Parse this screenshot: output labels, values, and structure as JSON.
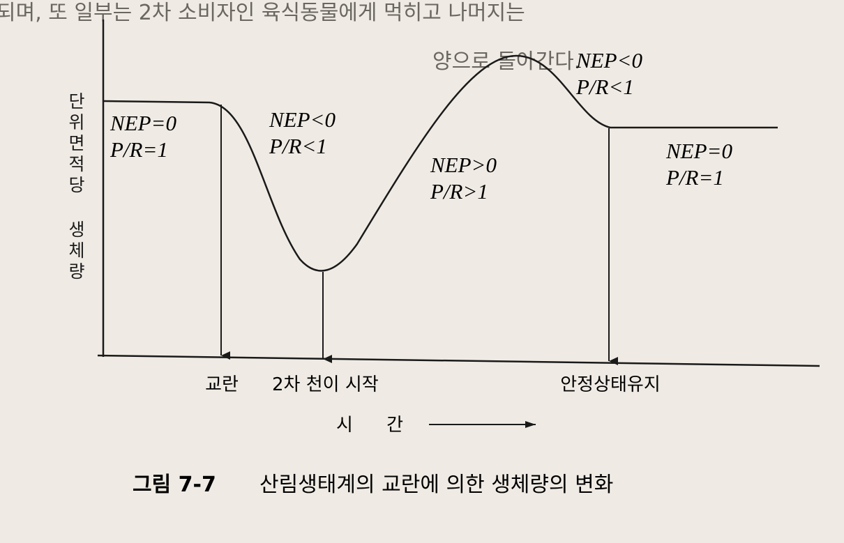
{
  "header": {
    "lines": [
      "되며, 또 일부는 2차 소비자인 육식동물에게 먹히고 나머지는",
      "양으로 돌아간다."
    ]
  },
  "y_axis_label": "단위면적당 생체량",
  "phases": [
    {
      "nep": "NEP=0",
      "pr": "P/R=1"
    },
    {
      "nep": "NEP<0",
      "pr": "P/R<1"
    },
    {
      "nep": "NEP>0",
      "pr": "P/R>1"
    },
    {
      "nep": "NEP<0",
      "pr": "P/R<1"
    },
    {
      "nep": "NEP=0",
      "pr": "P/R=1"
    }
  ],
  "events": [
    "교란",
    "2차 천이 시작",
    "안정상태유지"
  ],
  "x_axis_label": "시 간",
  "caption": {
    "number": "그림 7-7",
    "text": "산림생태계의 교란에 의한 생체량의 변화"
  }
}
